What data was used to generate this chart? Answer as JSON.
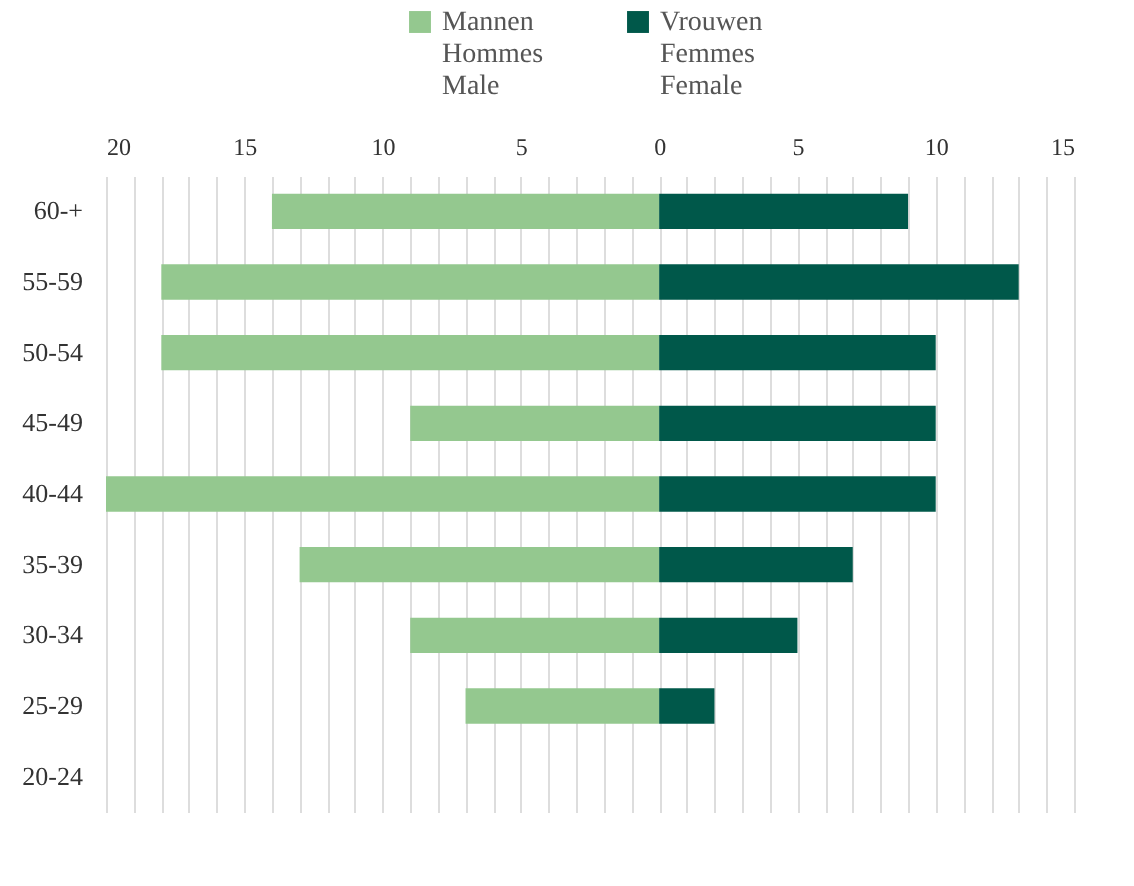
{
  "chart_data": {
    "type": "bar",
    "orientation": "horizontal",
    "categories": [
      "60-+",
      "55-59",
      "50-54",
      "45-49",
      "40-44",
      "35-39",
      "30-34",
      "25-29",
      "20-24"
    ],
    "series": [
      {
        "name": "Mannen\nHommes\nMale",
        "color": "#94c88f",
        "values": [
          -14,
          -18,
          -18,
          -9,
          -20,
          -13,
          -9,
          -7,
          0
        ]
      },
      {
        "name": "Vrouwen\nFemmes\nFemale",
        "color": "#00584a",
        "values": [
          9,
          13,
          10,
          10,
          10,
          7,
          5,
          2,
          0
        ]
      }
    ],
    "xlim": [
      -20,
      15
    ],
    "xticks": [
      {
        "value": -20,
        "label": "20"
      },
      {
        "value": -19,
        "label": null
      },
      {
        "value": -18,
        "label": null
      },
      {
        "value": -17,
        "label": null
      },
      {
        "value": -16,
        "label": null
      },
      {
        "value": -15,
        "label": "15"
      },
      {
        "value": -14,
        "label": null
      },
      {
        "value": -13,
        "label": null
      },
      {
        "value": -12,
        "label": null
      },
      {
        "value": -11,
        "label": null
      },
      {
        "value": -10,
        "label": "10"
      },
      {
        "value": -9,
        "label": null
      },
      {
        "value": -8,
        "label": null
      },
      {
        "value": -7,
        "label": null
      },
      {
        "value": -6,
        "label": null
      },
      {
        "value": -5,
        "label": "5"
      },
      {
        "value": -4,
        "label": null
      },
      {
        "value": -3,
        "label": null
      },
      {
        "value": -2,
        "label": null
      },
      {
        "value": -1,
        "label": null
      },
      0,
      {
        "value": 1,
        "label": null
      },
      {
        "value": 2,
        "label": null
      },
      {
        "value": 3,
        "label": null
      },
      {
        "value": 4,
        "label": null
      },
      5,
      {
        "value": 6,
        "label": null
      },
      {
        "value": 7,
        "label": null
      },
      {
        "value": 8,
        "label": null
      },
      {
        "value": 9,
        "label": null
      },
      10,
      {
        "value": 11,
        "label": null
      },
      {
        "value": 12,
        "label": null
      },
      {
        "value": 13,
        "label": null
      },
      {
        "value": 14,
        "label": null
      },
      15
    ],
    "grid": "x",
    "legend": "top",
    "stacked": true
  }
}
